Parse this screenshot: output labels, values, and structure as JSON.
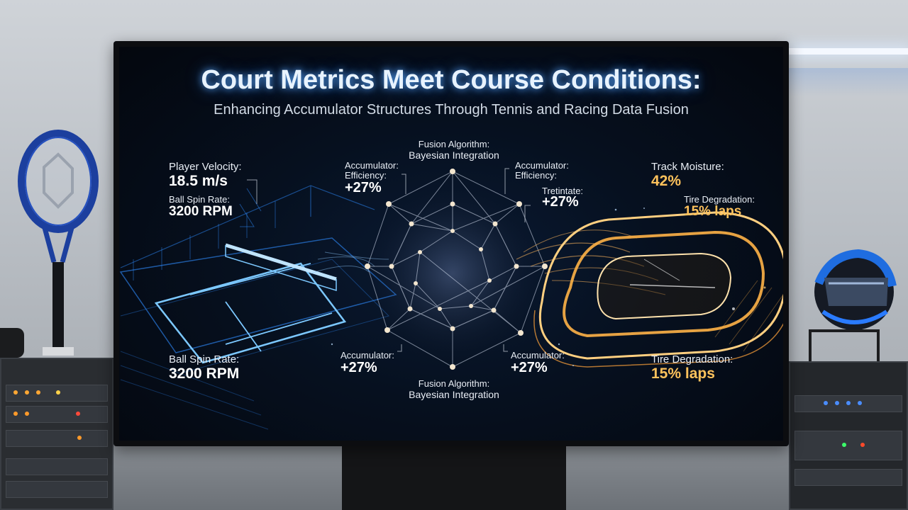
{
  "screen": {
    "title": "Court Metrics Meet Course Conditions:",
    "subtitle": "Enhancing Accumulator Structures Through Tennis and Racing Data Fusion"
  },
  "tennis": {
    "velocity_label": "Player Velocity:",
    "velocity_value": "18.5 m/s",
    "spin_label_top": "Ball Spin Rate:",
    "spin_value_top": "3200 RPM",
    "spin_label_bottom": "Ball Spin Rate:",
    "spin_value_bottom": "3200 RPM"
  },
  "fusion": {
    "top_label_1": "Fusion Algorithm:",
    "top_label_2": "Bayesian Integration",
    "bottom_label_1": "Fusion Algorithm:",
    "bottom_label_2": "Bayesian Integration",
    "acc_top_left_label_1": "Accumulator:",
    "acc_top_left_label_2": "Efficiency:",
    "acc_top_left_value": "+27%",
    "acc_top_right_label_1": "Accumulator:",
    "acc_top_right_label_2": "Efficiency:",
    "treatment_label": "Tretintate:",
    "treatment_value": "+27%",
    "acc_bottom_left_label": "Accumulator:",
    "acc_bottom_left_value": "+27%",
    "acc_bottom_right_label": "Accumulator:",
    "acc_bottom_right_value": "+27%"
  },
  "racing": {
    "moisture_label": "Track Moisture:",
    "moisture_value": "42%",
    "tire_label_top": "Tire Degradation:",
    "tire_value_top": "15% laps",
    "tire_label_bottom": "Tire Degradation:",
    "tire_value_bottom": "15% laps"
  },
  "colors": {
    "tennis_blue": "#4fb3ff",
    "fusion_white": "#dfe8f5",
    "racing_gold": "#ffb347"
  }
}
